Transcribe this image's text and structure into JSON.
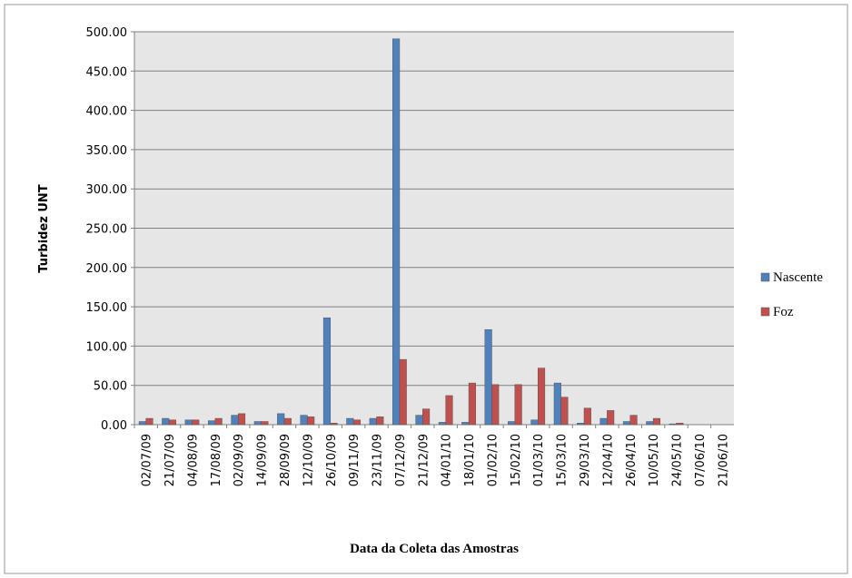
{
  "chart_data": {
    "type": "bar",
    "x_label": "Data da Coleta das Amostras",
    "y_label": "Turbidez UNT",
    "categories": [
      "02/07/09",
      "21/07/09",
      "04/08/09",
      "17/08/09",
      "02/09/09",
      "14/09/09",
      "28/09/09",
      "12/10/09",
      "26/10/09",
      "09/11/09",
      "23/11/09",
      "07/12/09",
      "21/12/09",
      "04/01/10",
      "18/01/10",
      "01/02/10",
      "15/02/10",
      "01/03/10",
      "15/03/10",
      "29/03/10",
      "12/04/10",
      "26/04/10",
      "10/05/10",
      "24/05/10",
      "07/06/10",
      "21/06/10"
    ],
    "series": [
      {
        "name": "Nascente",
        "color": "#4f81bd",
        "values": [
          4,
          8,
          6,
          5,
          12,
          4,
          14,
          12,
          136,
          8,
          8,
          491,
          12,
          3,
          3,
          121,
          4,
          6,
          53,
          2,
          8,
          4,
          4,
          1,
          null,
          null
        ]
      },
      {
        "name": "Foz",
        "color": "#c0504d",
        "values": [
          8,
          6,
          6,
          8,
          14,
          4,
          8,
          10,
          2,
          6,
          10,
          83,
          20,
          37,
          53,
          51,
          51,
          72,
          35,
          21,
          18,
          12,
          8,
          2,
          null,
          null
        ]
      }
    ],
    "ylim": [
      0,
      500
    ],
    "yticks": [
      {
        "value": 0,
        "label": "0.00"
      },
      {
        "value": 50,
        "label": "50.00"
      },
      {
        "value": 100,
        "label": "100.00"
      },
      {
        "value": 150,
        "label": "150.00"
      },
      {
        "value": 200,
        "label": "200.00"
      },
      {
        "value": 250,
        "label": "250.00"
      },
      {
        "value": 300,
        "label": "300.00"
      },
      {
        "value": 350,
        "label": "350.00"
      },
      {
        "value": 400,
        "label": "400.00"
      },
      {
        "value": 450,
        "label": "450.00"
      },
      {
        "value": 500,
        "label": "500.00"
      }
    ],
    "grid": true,
    "legend": "right"
  }
}
